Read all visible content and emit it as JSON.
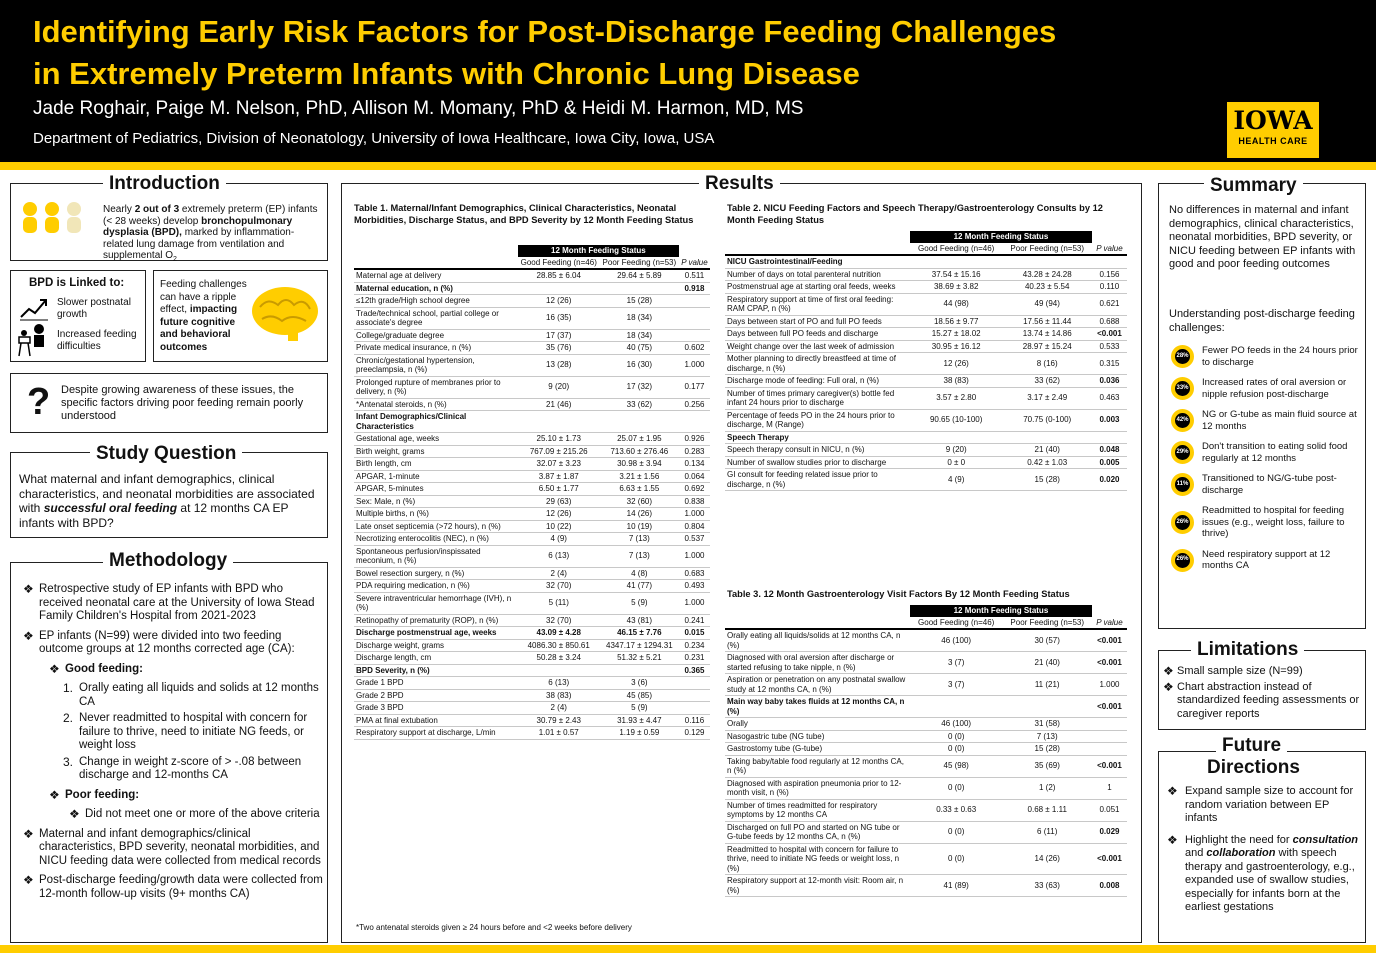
{
  "header": {
    "title1": "Identifying Early Risk Factors for Post-Discharge Feeding Challenges",
    "title2": "in Extremely Preterm Infants with Chronic Lung Disease",
    "authors": "Jade Roghair, Paige M. Nelson, PhD, Allison M. Momany, PhD & Heidi M. Harmon, MD, MS",
    "dept": "Department of Pediatrics, Division of Neonatology, University of Iowa Healthcare, Iowa City, Iowa, USA",
    "logo1": "IOWA",
    "logo2": "HEALTH CARE"
  },
  "intro": {
    "title": "Introduction",
    "t1": "Nearly ",
    "t2": "2 out of 3",
    "t3": " extremely preterm (EP) infants (< 28 weeks) develop ",
    "t4": "bronchopulmonary dysplasia (BPD),",
    "t5": " marked by inflammation-related lung damage from ventilation and supplemental O",
    "sub": "2",
    "linked": "BPD is Linked to:",
    "l1": "Slower postnatal growth",
    "l2": "Increased feeding difficulties",
    "r1": "Feeding challenges can have a ripple effect, ",
    "r2": "impacting future cognitive and behavioral outcomes",
    "q": "?",
    "gap": "Despite growing awareness of these issues, the specific factors driving poor feeding remain poorly understood"
  },
  "sq": {
    "title": "Study Question",
    "t1": "What maternal and infant demographics, clinical characteristics, and neonatal morbidities are associated with ",
    "t2": "successful oral feeding",
    "t3": " at 12 months CA EP infants with BPD?"
  },
  "meth": {
    "title": "Methodology",
    "b1": "Retrospective study of EP infants with BPD who received neonatal care at the University of Iowa Stead Family Children's Hospital from 2021-2023",
    "b2": "EP infants (N=99) were divided into two feeding outcome groups at 12 months corrected age (CA):",
    "good": "Good feeding:",
    "g1": "Orally eating all liquids and solids at 12 months CA",
    "g2": "Never readmitted to hospital with concern for failure to thrive, need to initiate NG feeds, or weight loss",
    "g3": "Change in weight z-score of > -.08 between discharge and 12-months CA",
    "poor": "Poor feeding:",
    "p1": "Did not meet one or more of the above criteria",
    "b3": "Maternal and infant demographics/clinical characteristics, BPD severity, neonatal morbidities, and NICU feeding data were collected from medical records",
    "b4": "Post-discharge feeding/growth data were collected from 12-month follow-up visits (9+ months CA)",
    "n1": "1.",
    "n2": "2.",
    "n3": "3."
  },
  "results": {
    "title": "Results"
  },
  "t1": {
    "caption": "Table 1. Maternal/Infant Demographics, Clinical Characteristics, Neonatal Morbidities, Discharge Status, and BPD Severity by 12 Month Feeding Status",
    "head": "12 Month Feeding Status",
    "c1": "Good Feeding (n=46)",
    "c2": "Poor Feeding (n=53)",
    "c3": "P value",
    "foot": "*Two antenatal steroids given ≥ 24 hours before and <2 weeks before delivery",
    "rows": [
      [
        "Maternal age at delivery",
        "28.85 ± 6.04",
        "29.64 ± 5.89",
        "0.511",
        ""
      ],
      [
        "Maternal education, n (%)",
        "",
        "",
        "0.918",
        "sub"
      ],
      [
        "≤12th grade/High school degree",
        "12 (26)",
        "15 (28)",
        "",
        ""
      ],
      [
        "Trade/technical school, partial college or associate's degree",
        "16 (35)",
        "18 (34)",
        "",
        ""
      ],
      [
        "College/graduate degree",
        "17 (37)",
        "18 (34)",
        "",
        ""
      ],
      [
        "Private medical insurance, n (%)",
        "35 (76)",
        "40 (75)",
        "0.602",
        ""
      ],
      [
        "Chronic/gestational hypertension, preeclampsia, n (%)",
        "13 (28)",
        "16 (30)",
        "1.000",
        ""
      ],
      [
        "Prolonged rupture of membranes prior to delivery, n (%)",
        "9 (20)",
        "17 (32)",
        "0.177",
        ""
      ],
      [
        "*Antenatal steroids, n (%)",
        "21 (46)",
        "33 (62)",
        "0.256",
        ""
      ],
      [
        "Infant Demographics/Clinical Characteristics",
        "",
        "",
        "",
        "sub"
      ],
      [
        "Gestational age, weeks",
        "25.10 ± 1.73",
        "25.07 ± 1.95",
        "0.926",
        ""
      ],
      [
        "Birth weight, grams",
        "767.09 ± 215.26",
        "713.60 ± 276.46",
        "0.283",
        ""
      ],
      [
        "Birth length, cm",
        "32.07 ± 3.23",
        "30.98 ± 3.94",
        "0.134",
        ""
      ],
      [
        "APGAR, 1-minute",
        "3.87 ± 1.87",
        "3.21 ± 1.56",
        "0.064",
        ""
      ],
      [
        "APGAR, 5-minutes",
        "6.50 ± 1.77",
        "6.63 ± 1.55",
        "0.692",
        ""
      ],
      [
        "Sex: Male, n (%)",
        "29 (63)",
        "32 (60)",
        "0.838",
        ""
      ],
      [
        "Multiple births, n (%)",
        "12 (26)",
        "14 (26)",
        "1.000",
        ""
      ],
      [
        "Late onset septicemia (>72 hours), n (%)",
        "10 (22)",
        "10 (19)",
        "0.804",
        ""
      ],
      [
        "Necrotizing enterocolitis (NEC), n (%)",
        "4 (9)",
        "7 (13)",
        "0.537",
        ""
      ],
      [
        "Spontaneous perfusion/inspissated meconium, n (%)",
        "6 (13)",
        "7 (13)",
        "1.000",
        ""
      ],
      [
        "Bowel resection surgery, n (%)",
        "2 (4)",
        "4 (8)",
        "0.683",
        ""
      ],
      [
        "PDA requiring medication, n (%)",
        "32 (70)",
        "41 (77)",
        "0.493",
        ""
      ],
      [
        "Severe intraventricular hemorrhage (IVH), n (%)",
        "5 (11)",
        "5 (9)",
        "1.000",
        ""
      ],
      [
        "Retinopathy of prematurity (ROP), n (%)",
        "32 (70)",
        "43 (81)",
        "0.241",
        ""
      ],
      [
        "Discharge postmenstrual age, weeks",
        "43.09 ± 4.28",
        "46.15 ± 7.76",
        "0.015",
        "sub"
      ],
      [
        "Discharge weight, grams",
        "4086.30 ± 850.61",
        "4347.17 ± 1294.31",
        "0.234",
        ""
      ],
      [
        "Discharge length, cm",
        "50.28 ± 3.24",
        "51.32 ± 5.21",
        "0.231",
        ""
      ],
      [
        "BPD Severity, n (%)",
        "",
        "",
        "0.365",
        "sub"
      ],
      [
        "Grade 1 BPD",
        "6 (13)",
        "3 (6)",
        "",
        ""
      ],
      [
        "Grade 2 BPD",
        "38 (83)",
        "45 (85)",
        "",
        ""
      ],
      [
        "Grade 3 BPD",
        "2 (4)",
        "5 (9)",
        "",
        ""
      ],
      [
        "PMA at final extubation",
        "30.79 ± 2.43",
        "31.93 ± 4.47",
        "0.116",
        ""
      ],
      [
        "Respiratory support at discharge, L/min",
        "1.01 ± 0.57",
        "1.19 ± 0.59",
        "0.129",
        ""
      ]
    ]
  },
  "t2": {
    "caption": "Table 2. NICU Feeding Factors and Speech Therapy/Gastroenterology Consults by 12 Month Feeding Status",
    "head": "12 Month Feeding Status",
    "c1": "Good Feeding (n=46)",
    "c2": "Poor Feeding (n=53)",
    "c3": "P value",
    "rows": [
      [
        "NICU Gastrointestinal/Feeding",
        "",
        "",
        "",
        "sub"
      ],
      [
        "Number of days on total parenteral nutrition",
        "37.54 ± 15.16",
        "43.28 ± 24.28",
        "0.156",
        ""
      ],
      [
        "Postmenstrual age at starting oral feeds, weeks",
        "38.69 ± 3.82",
        "40.23 ± 5.54",
        "0.110",
        ""
      ],
      [
        "Respiratory support at time of first oral feeding: RAM CPAP, n (%)",
        "44 (98)",
        "49 (94)",
        "0.621",
        ""
      ],
      [
        "Days between start of PO and full PO feeds",
        "18.56 ± 9.77",
        "17.56 ± 11.44",
        "0.688",
        ""
      ],
      [
        "Days between full PO feeds and discharge",
        "15.27 ± 18.02",
        "13.74 ± 14.86",
        "<0.001",
        "b"
      ],
      [
        "Weight change over the last week of admission",
        "30.95 ± 16.12",
        "28.97 ± 15.24",
        "0.533",
        ""
      ],
      [
        "Mother planning to directly breastfeed at time of discharge, n (%)",
        "12 (26)",
        "8 (16)",
        "0.315",
        ""
      ],
      [
        "Discharge mode of feeding: Full oral, n (%)",
        "38 (83)",
        "33 (62)",
        "0.036",
        "b"
      ],
      [
        "Number of times primary caregiver(s) bottle fed infant 24 hours prior to discharge",
        "3.57 ± 2.80",
        "3.17 ± 2.49",
        "0.463",
        ""
      ],
      [
        "Percentage of feeds PO in the 24 hours prior to discharge, M (Range)",
        "90.65 (10-100)",
        "70.75 (0-100)",
        "0.003",
        "b"
      ],
      [
        "Speech Therapy",
        "",
        "",
        "",
        "sub"
      ],
      [
        "Speech therapy consult in NICU, n (%)",
        "9 (20)",
        "21 (40)",
        "0.048",
        "b"
      ],
      [
        "Number of swallow studies prior to discharge",
        "0 ± 0",
        "0.42 ± 1.03",
        "0.005",
        "b"
      ],
      [
        "GI consult for feeding related issue prior to discharge, n (%)",
        "4 (9)",
        "15 (28)",
        "0.020",
        "b"
      ]
    ]
  },
  "t3": {
    "caption": "Table 3. 12 Month Gastroenterology Visit Factors By 12 Month Feeding Status",
    "head": "12 Month Feeding Status",
    "c1": "Good Feeding (n=46)",
    "c2": "Poor Feeding (n=53)",
    "c3": "P value",
    "rows": [
      [
        "Orally eating all liquids/solids at 12 months CA, n (%)",
        "46 (100)",
        "30 (57)",
        "<0.001",
        "b"
      ],
      [
        "Diagnosed with oral aversion after discharge or started refusing to take nipple, n (%)",
        "3 (7)",
        "21 (40)",
        "<0.001",
        "b"
      ],
      [
        "Aspiration or penetration on any postnatal swallow study at 12 months CA, n (%)",
        "3 (7)",
        "11 (21)",
        "1.000",
        ""
      ],
      [
        "Main way baby takes fluids at 12 months CA, n (%)",
        "",
        "",
        "<0.001",
        "sub"
      ],
      [
        "Orally",
        "46 (100)",
        "31 (58)",
        "",
        ""
      ],
      [
        "Nasogastric tube (NG tube)",
        "0 (0)",
        "7 (13)",
        "",
        ""
      ],
      [
        "Gastrostomy tube (G-tube)",
        "0 (0)",
        "15 (28)",
        "",
        ""
      ],
      [
        "Taking baby/table food regularly at 12 months CA, n (%)",
        "45 (98)",
        "35 (69)",
        "<0.001",
        "b"
      ],
      [
        "Diagnosed with aspiration pneumonia prior to 12-month visit, n (%)",
        "0 (0)",
        "1 (2)",
        "1",
        ""
      ],
      [
        "Number of times readmitted for respiratory symptoms by 12 months CA",
        "0.33 ± 0.63",
        "0.68 ± 1.11",
        "0.051",
        ""
      ],
      [
        "Discharged on full PO and started on NG tube or G-tube feeds by 12 months CA, n (%)",
        "0 (0)",
        "6 (11)",
        "0.029",
        "b"
      ],
      [
        "Readmitted to hospital with concern for failure to thrive, need to initiate NG feeds or weight loss, n (%)",
        "0 (0)",
        "14 (26)",
        "<0.001",
        "b"
      ],
      [
        "Respiratory support at 12-month visit: Room air, n (%)",
        "41 (89)",
        "33 (63)",
        "0.008",
        "b"
      ]
    ]
  },
  "summary": {
    "title": "Summary",
    "p1": "No differences in maternal and infant demographics, clinical characteristics, neonatal morbidities, BPD severity, or NICU feeding between EP infants with good and poor feeding outcomes",
    "p2": "Understanding post-discharge feeding challenges:",
    "items": [
      {
        "pct": "28%",
        "text": "Fewer PO feeds in the 24 hours prior to discharge"
      },
      {
        "pct": "33%",
        "text": "Increased rates of oral aversion or nipple refusion post-discharge"
      },
      {
        "pct": "42%",
        "text": "NG or G-tube as main fluid source at 12 months"
      },
      {
        "pct": "29%",
        "text": "Don't transition to eating solid food regularly at 12 months"
      },
      {
        "pct": "11%",
        "text": "Transitioned to NG/G-tube post-discharge"
      },
      {
        "pct": "26%",
        "text": "Readmitted to hospital for feeding issues (e.g., weight loss, failure to thrive)"
      },
      {
        "pct": "26%",
        "text": "Need respiratory support at 12 months CA"
      }
    ]
  },
  "limits": {
    "title": "Limitations",
    "l1": "Small sample size (N=99)",
    "l2": "Chart abstraction instead of standardized feeding assessments or caregiver reports"
  },
  "future": {
    "title1": "Future",
    "title2": "Directions",
    "f1": "Expand sample size to account for random variation between EP infants",
    "f2a": "Highlight the need for ",
    "f2b": "consultation",
    "f2c": " and ",
    "f2d": "collaboration",
    "f2e": " with speech therapy and gastroenterology, e.g., expanded use of swallow studies, especially for infants born at the earliest gestations"
  },
  "bullet": "❖"
}
